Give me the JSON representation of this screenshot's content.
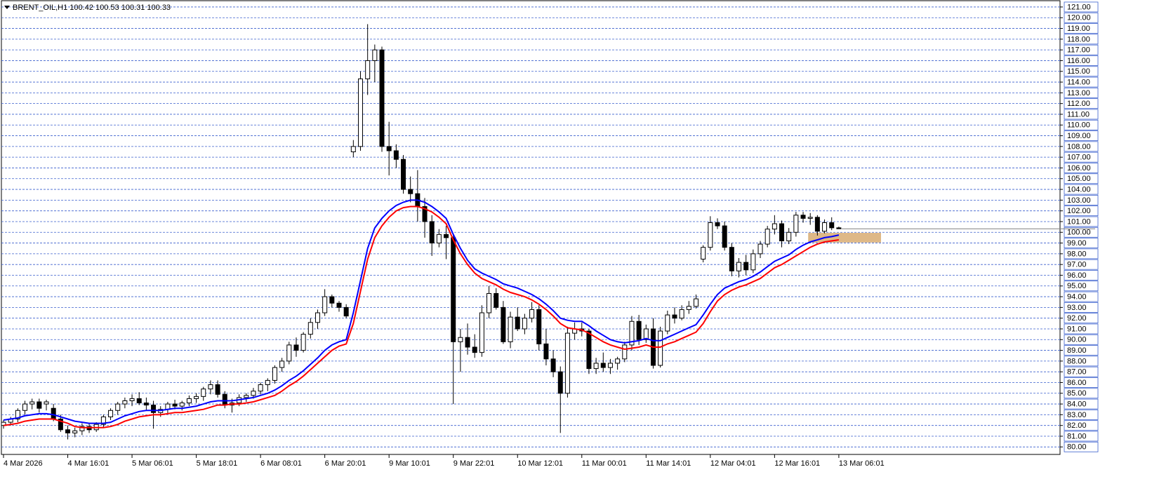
{
  "chart_data": {
    "type": "candlestick",
    "title": "BRENT_OIL,H1  100.42 100.53 100.31 100.33",
    "categories": [
      "4 Mar 2026",
      null,
      null,
      null,
      null,
      null,
      null,
      null,
      null,
      "4 Mar 16:01",
      null,
      null,
      null,
      null,
      null,
      null,
      null,
      null,
      "5 Mar 06:01",
      null,
      null,
      null,
      null,
      null,
      null,
      null,
      null,
      "5 Mar 18:01",
      null,
      null,
      null,
      null,
      null,
      null,
      null,
      null,
      "6 Mar 08:01",
      null,
      null,
      null,
      null,
      null,
      null,
      null,
      null,
      "6 Mar 20:01",
      null,
      null,
      null,
      null,
      null,
      null,
      null,
      null,
      "9 Mar 10:01",
      null,
      null,
      null,
      null,
      null,
      null,
      null,
      null,
      "9 Mar 22:01",
      null,
      null,
      null,
      null,
      null,
      null,
      null,
      null,
      "10 Mar 12:01",
      null,
      null,
      null,
      null,
      null,
      null,
      null,
      null,
      "11 Mar 00:01",
      null,
      null,
      null,
      null,
      null,
      null,
      null,
      null,
      "11 Mar 14:01",
      null,
      null,
      null,
      null,
      null,
      null,
      null,
      null,
      "12 Mar 04:01",
      null,
      null,
      null,
      null,
      null,
      null,
      null,
      null,
      "12 Mar 16:01",
      null,
      null,
      null,
      null,
      null,
      null,
      null,
      null,
      "13 Mar 06:01"
    ],
    "ohlc": [
      [
        82,
        82.5,
        81.7,
        82.3
      ],
      [
        82.3,
        82.8,
        82,
        82.6
      ],
      [
        82.6,
        83.6,
        82.3,
        83.4
      ],
      [
        83.4,
        84.3,
        83,
        84
      ],
      [
        84,
        84.5,
        83.5,
        84.2
      ],
      [
        84.2,
        84.5,
        83.2,
        83.6
      ],
      [
        84,
        84.4,
        83.4,
        84.2
      ],
      [
        83.6,
        84,
        82.4,
        82.6
      ],
      [
        82.6,
        83,
        81.4,
        81.6
      ],
      [
        81.6,
        82,
        80.7,
        81.3
      ],
      [
        81.3,
        81.8,
        80.9,
        81.5
      ],
      [
        81.5,
        82.2,
        81.1,
        81.9
      ],
      [
        81.9,
        82.2,
        81.3,
        81.6
      ],
      [
        81.6,
        82.3,
        81.4,
        82.1
      ],
      [
        82.1,
        83,
        81.8,
        82.8
      ],
      [
        82.8,
        83.6,
        82.5,
        83.4
      ],
      [
        83.4,
        84.2,
        83,
        84
      ],
      [
        84,
        84.6,
        83.6,
        84.3
      ],
      [
        84.3,
        84.9,
        83.8,
        84.5
      ],
      [
        84.5,
        85.1,
        83.9,
        84.1
      ],
      [
        84.1,
        84.6,
        83.4,
        83.9
      ],
      [
        83.9,
        84.3,
        81.7,
        83.2
      ],
      [
        83.2,
        83.8,
        82.8,
        83.5
      ],
      [
        83.5,
        84.2,
        83.1,
        84
      ],
      [
        84,
        84.4,
        83.5,
        83.8
      ],
      [
        83.8,
        84.3,
        83.4,
        84.1
      ],
      [
        84.1,
        84.8,
        83.8,
        84.5
      ],
      [
        84.5,
        85,
        84.1,
        84.7
      ],
      [
        84.7,
        85.6,
        84.3,
        85.4
      ],
      [
        85.4,
        86.2,
        84.9,
        85.8
      ],
      [
        85.8,
        86.2,
        84.6,
        84.9
      ],
      [
        84.9,
        85.2,
        83.6,
        83.9
      ],
      [
        83.9,
        84.5,
        83.2,
        84.1
      ],
      [
        84.1,
        84.9,
        83.8,
        84.6
      ],
      [
        84.6,
        85,
        84.2,
        84.8
      ],
      [
        84.8,
        85.5,
        84.5,
        85.2
      ],
      [
        85.2,
        86,
        84.9,
        85.8
      ],
      [
        85.8,
        86.4,
        85.2,
        86.2
      ],
      [
        86.2,
        87.6,
        85.9,
        87.4
      ],
      [
        87.4,
        88.3,
        87,
        88
      ],
      [
        88,
        89.8,
        87.7,
        89.5
      ],
      [
        89.5,
        90.2,
        88.4,
        89
      ],
      [
        89,
        90.7,
        88.8,
        90.5
      ],
      [
        90.5,
        92,
        90.1,
        91.6
      ],
      [
        91.6,
        92.8,
        91,
        92.5
      ],
      [
        92.5,
        94.7,
        92.2,
        94
      ],
      [
        94,
        94.2,
        93,
        93.4
      ],
      [
        93.4,
        93.6,
        92.6,
        93
      ],
      [
        93,
        93.3,
        92,
        92.2
      ],
      [
        107.5,
        108.6,
        107,
        108
      ],
      [
        108,
        115,
        107.6,
        114.3
      ],
      [
        114.3,
        119.4,
        112.8,
        116
      ],
      [
        116,
        117.5,
        114,
        117
      ],
      [
        117,
        117.3,
        107.5,
        108
      ],
      [
        108,
        110.3,
        105.3,
        107.6
      ],
      [
        107.6,
        108.2,
        106,
        106.8
      ],
      [
        106.8,
        107.2,
        103.6,
        104
      ],
      [
        104,
        105.2,
        102.8,
        103.6
      ],
      [
        103.6,
        105.8,
        101,
        102.4
      ],
      [
        102.4,
        103.2,
        99.5,
        101
      ],
      [
        101,
        101.6,
        97.8,
        99
      ],
      [
        99,
        100.3,
        98.6,
        99.8
      ],
      [
        99.8,
        100.6,
        97.5,
        99.5
      ],
      [
        99.5,
        99.8,
        84,
        89.8
      ],
      [
        89.8,
        91,
        87,
        90.2
      ],
      [
        90.2,
        91.5,
        88.6,
        89.3
      ],
      [
        89.3,
        90.5,
        88.3,
        88.8
      ],
      [
        88.8,
        93.2,
        88.4,
        92.5
      ],
      [
        92.5,
        95,
        92,
        94.3
      ],
      [
        94.3,
        94.8,
        92.8,
        93
      ],
      [
        93,
        93.6,
        89.6,
        89.8
      ],
      [
        89.8,
        92.6,
        89.2,
        92.1
      ],
      [
        92.1,
        93,
        90.8,
        91
      ],
      [
        91,
        92.4,
        90.5,
        92
      ],
      [
        92,
        93.5,
        91.6,
        92.8
      ],
      [
        92.8,
        93.2,
        89,
        89.6
      ],
      [
        89.6,
        91,
        87.6,
        88.2
      ],
      [
        88.2,
        89,
        86.5,
        87
      ],
      [
        87,
        87.5,
        81.3,
        85
      ],
      [
        85,
        91.2,
        84.6,
        90.6
      ],
      [
        90.6,
        91.6,
        90,
        91
      ],
      [
        91,
        91.6,
        90.3,
        90.8
      ],
      [
        90.8,
        91,
        86.8,
        87.3
      ],
      [
        87.3,
        88.3,
        86.8,
        87.8
      ],
      [
        87.8,
        88.8,
        87,
        87.4
      ],
      [
        87.4,
        88.2,
        86.8,
        87.8
      ],
      [
        87.8,
        88.4,
        87.2,
        88.2
      ],
      [
        88.2,
        89.8,
        87.9,
        89.5
      ],
      [
        89.5,
        92.2,
        89,
        91.7
      ],
      [
        91.7,
        92.3,
        89.5,
        90
      ],
      [
        90,
        91.4,
        89.7,
        91
      ],
      [
        91,
        92,
        87.3,
        87.6
      ],
      [
        87.6,
        91.2,
        87.4,
        90.8
      ],
      [
        90.8,
        92.7,
        90.5,
        92.3
      ],
      [
        92.3,
        93,
        91.5,
        92
      ],
      [
        92,
        93.2,
        91.8,
        92.8
      ],
      [
        92.8,
        93.6,
        92.4,
        93.1
      ],
      [
        93.1,
        94.2,
        92.9,
        93.8
      ],
      [
        97.5,
        98.8,
        97.2,
        98.6
      ],
      [
        98.6,
        101.5,
        98.3,
        100.9
      ],
      [
        100.9,
        101.3,
        100.3,
        100.6
      ],
      [
        100.6,
        101,
        98.3,
        98.6
      ],
      [
        98.6,
        99,
        95.9,
        96.4
      ],
      [
        96.4,
        97.6,
        95.8,
        97.2
      ],
      [
        97.2,
        97.9,
        96,
        96.5
      ],
      [
        96.5,
        98.4,
        96.2,
        98
      ],
      [
        98,
        99.2,
        97.6,
        98.9
      ],
      [
        98.9,
        100.6,
        98.6,
        100.3
      ],
      [
        100.3,
        101.6,
        99.8,
        100.8
      ],
      [
        100.8,
        101.1,
        98.6,
        99.2
      ],
      [
        99.2,
        100.4,
        98.9,
        100
      ],
      [
        100,
        101.9,
        99.6,
        101.6
      ],
      [
        101.6,
        101.9,
        100.9,
        101.3
      ],
      [
        101.3,
        101.8,
        100.7,
        101.4
      ],
      [
        101.4,
        101.6,
        99.7,
        100.1
      ],
      [
        100.1,
        101.2,
        99.9,
        100.9
      ],
      [
        100.9,
        101.4,
        100.2,
        100.42
      ],
      [
        100.42,
        100.53,
        100.31,
        100.33
      ]
    ],
    "series": [
      {
        "color": "#0000ff",
        "values": [
          82.5,
          82.6,
          82.7,
          82.9,
          83.0,
          83.1,
          83.1,
          83.0,
          82.8,
          82.6,
          82.4,
          82.3,
          82.2,
          82.2,
          82.2,
          82.3,
          82.6,
          82.9,
          83.1,
          83.3,
          83.4,
          83.4,
          83.4,
          83.5,
          83.6,
          83.6,
          83.7,
          83.8,
          84.0,
          84.2,
          84.3,
          84.3,
          84.3,
          84.4,
          84.5,
          84.6,
          84.8,
          85.0,
          85.3,
          85.7,
          86.2,
          86.6,
          87.1,
          87.7,
          88.3,
          89.0,
          89.5,
          89.8,
          90.0,
          92.5,
          95.5,
          98.5,
          100.4,
          101.3,
          102.0,
          102.5,
          102.8,
          103.0,
          103.0,
          102.8,
          102.4,
          101.9,
          101.3,
          99.8,
          98.5,
          97.4,
          96.6,
          96.2,
          95.9,
          95.6,
          95.2,
          95.0,
          94.8,
          94.5,
          94.2,
          93.8,
          93.3,
          92.7,
          92.0,
          91.8,
          91.7,
          91.7,
          91.3,
          90.8,
          90.4,
          90.0,
          89.8,
          89.7,
          89.8,
          89.9,
          90.1,
          89.9,
          89.9,
          90.2,
          90.5,
          90.8,
          91.1,
          91.4,
          92.3,
          93.3,
          94.2,
          94.8,
          95.1,
          95.4,
          95.6,
          95.9,
          96.3,
          96.8,
          97.3,
          97.6,
          97.9,
          98.4,
          98.8,
          99.1,
          99.3,
          99.5,
          99.6,
          99.75
        ]
      },
      {
        "color": "#ff0000",
        "values": [
          82.0,
          82.1,
          82.2,
          82.4,
          82.5,
          82.6,
          82.6,
          82.6,
          82.4,
          82.2,
          81.9,
          81.8,
          81.8,
          81.8,
          81.8,
          81.9,
          82.1,
          82.4,
          82.6,
          82.8,
          82.9,
          83.0,
          83.0,
          83.1,
          83.2,
          83.2,
          83.3,
          83.4,
          83.5,
          83.7,
          83.9,
          83.9,
          84.0,
          84.0,
          84.1,
          84.2,
          84.4,
          84.6,
          84.8,
          85.2,
          85.7,
          86.1,
          86.6,
          87.2,
          87.8,
          88.4,
          89.0,
          89.4,
          89.6,
          91.5,
          94.5,
          97.5,
          99.5,
          100.6,
          101.4,
          102.0,
          102.3,
          102.4,
          102.4,
          102.2,
          101.9,
          101.4,
          100.8,
          99.3,
          98.0,
          97.0,
          96.2,
          95.7,
          95.4,
          95.1,
          94.7,
          94.4,
          94.2,
          94.0,
          93.7,
          93.3,
          92.8,
          92.2,
          91.5,
          91.1,
          91.0,
          90.9,
          90.6,
          90.2,
          89.8,
          89.5,
          89.3,
          89.1,
          89.2,
          89.3,
          89.5,
          89.3,
          89.3,
          89.6,
          89.8,
          90.1,
          90.4,
          90.7,
          91.5,
          92.6,
          93.6,
          94.2,
          94.6,
          94.9,
          95.1,
          95.4,
          95.7,
          96.2,
          96.7,
          97.0,
          97.4,
          97.8,
          98.2,
          98.6,
          98.9,
          99.1,
          99.2,
          99.3
        ]
      }
    ],
    "zone": {
      "values": [
        99.05,
        99.95
      ],
      "color": "#deb887"
    },
    "ylim": [
      79.3,
      121.65
    ],
    "yticks": [
      {
        "value": 80,
        "label": "80.00"
      },
      {
        "value": 81,
        "label": "81.00"
      },
      {
        "value": 82,
        "label": "82.00"
      },
      {
        "value": 83,
        "label": "83.00"
      },
      {
        "value": 84,
        "label": "84.00"
      },
      {
        "value": 85,
        "label": "85.00"
      },
      {
        "value": 86,
        "label": "86.00"
      },
      {
        "value": 87,
        "label": "87.00"
      },
      {
        "value": 88,
        "label": "88.00"
      },
      {
        "value": 89,
        "label": "89.00"
      },
      {
        "value": 90,
        "label": "90.00"
      },
      {
        "value": 91,
        "label": "91.00"
      },
      {
        "value": 92,
        "label": "92.00"
      },
      {
        "value": 93,
        "label": "93.00"
      },
      {
        "value": 94,
        "label": "94.00"
      },
      {
        "value": 95,
        "label": "95.00"
      },
      {
        "value": 96,
        "label": "96.00"
      },
      {
        "value": 97,
        "label": "97.00"
      },
      {
        "value": 98,
        "label": "98.00"
      },
      {
        "value": 99,
        "label": "99.00"
      },
      {
        "value": 100,
        "label": "100.00"
      },
      {
        "value": 101,
        "label": "101.00"
      },
      {
        "value": 102,
        "label": "102.00"
      },
      {
        "value": 103,
        "label": "103.00"
      },
      {
        "value": 104,
        "label": "104.00"
      },
      {
        "value": 105,
        "label": "105.00"
      },
      {
        "value": 106,
        "label": "106.00"
      },
      {
        "value": 107,
        "label": "107.00"
      },
      {
        "value": 108,
        "label": "108.00"
      },
      {
        "value": 109,
        "label": "109.00"
      },
      {
        "value": 110,
        "label": "110.00"
      },
      {
        "value": 111,
        "label": "111.00"
      },
      {
        "value": 112,
        "label": "112.00"
      },
      {
        "value": 113,
        "label": "113.00"
      },
      {
        "value": 114,
        "label": "114.00"
      },
      {
        "value": 115,
        "label": "115.00"
      },
      {
        "value": 116,
        "label": "116.00"
      },
      {
        "value": 117,
        "label": "117.00"
      },
      {
        "value": 118,
        "label": "118.00"
      },
      {
        "value": 119,
        "label": "119.00"
      },
      {
        "value": 120,
        "label": "120.00"
      },
      {
        "value": 121,
        "label": "121.00"
      }
    ],
    "grid": true
  }
}
